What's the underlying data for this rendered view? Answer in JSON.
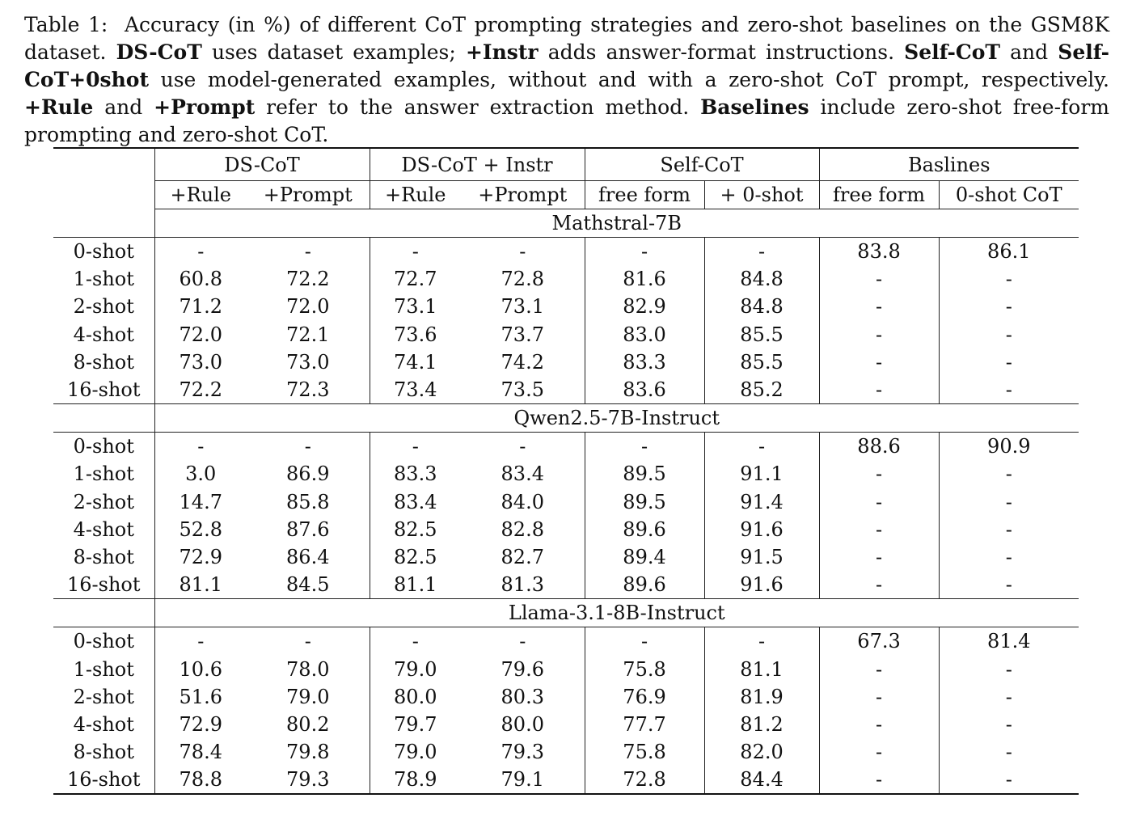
{
  "caption": {
    "label": "Table 1:",
    "p1": "Accuracy (in %) of different CoT prompting strategies and zero-shot baselines on the GSM8K dataset.",
    "t_dscot": "DS-CoT",
    "p2": "uses dataset examples;",
    "t_instr": "+Instr",
    "p3": "adds answer-format instructions.",
    "t_selfcot": "Self-CoT",
    "p4": "and",
    "t_selfcot0": "Self-CoT+0shot",
    "p5": "use model-generated examples, without and with a zero-shot CoT prompt, respectively.",
    "t_rule": "+Rule",
    "p6": "and",
    "t_prompt": "+Prompt",
    "p7": "refer to the answer extraction method.",
    "t_baselines": "Baselines",
    "p8": "include zero-shot free-form prompting and zero-shot CoT."
  },
  "header": {
    "groups": [
      "DS-CoT",
      "DS-CoT + Instr",
      "Self-CoT",
      "Baslines"
    ],
    "subcols": [
      "+Rule",
      "+Prompt",
      "+Rule",
      "+Prompt",
      "free form",
      "+ 0-shot",
      "free form",
      "0-shot CoT"
    ]
  },
  "sections": [
    {
      "model": "Mathstral-7B",
      "rows": [
        {
          "label": "0-shot",
          "cells": [
            "-",
            "-",
            "-",
            "-",
            "-",
            "-",
            "83.8",
            "86.1"
          ]
        },
        {
          "label": "1-shot",
          "cells": [
            "60.8",
            "72.2",
            "72.7",
            "72.8",
            "81.6",
            "84.8",
            "-",
            "-"
          ]
        },
        {
          "label": "2-shot",
          "cells": [
            "71.2",
            "72.0",
            "73.1",
            "73.1",
            "82.9",
            "84.8",
            "-",
            "-"
          ]
        },
        {
          "label": "4-shot",
          "cells": [
            "72.0",
            "72.1",
            "73.6",
            "73.7",
            "83.0",
            "85.5",
            "-",
            "-"
          ]
        },
        {
          "label": "8-shot",
          "cells": [
            "73.0",
            "73.0",
            "74.1",
            "74.2",
            "83.3",
            "85.5",
            "-",
            "-"
          ]
        },
        {
          "label": "16-shot",
          "cells": [
            "72.2",
            "72.3",
            "73.4",
            "73.5",
            "83.6",
            "85.2",
            "-",
            "-"
          ]
        }
      ]
    },
    {
      "model": "Qwen2.5-7B-Instruct",
      "rows": [
        {
          "label": "0-shot",
          "cells": [
            "-",
            "-",
            "-",
            "-",
            "-",
            "-",
            "88.6",
            "90.9"
          ]
        },
        {
          "label": "1-shot",
          "cells": [
            "3.0",
            "86.9",
            "83.3",
            "83.4",
            "89.5",
            "91.1",
            "-",
            "-"
          ]
        },
        {
          "label": "2-shot",
          "cells": [
            "14.7",
            "85.8",
            "83.4",
            "84.0",
            "89.5",
            "91.4",
            "-",
            "-"
          ]
        },
        {
          "label": "4-shot",
          "cells": [
            "52.8",
            "87.6",
            "82.5",
            "82.8",
            "89.6",
            "91.6",
            "-",
            "-"
          ]
        },
        {
          "label": "8-shot",
          "cells": [
            "72.9",
            "86.4",
            "82.5",
            "82.7",
            "89.4",
            "91.5",
            "-",
            "-"
          ]
        },
        {
          "label": "16-shot",
          "cells": [
            "81.1",
            "84.5",
            "81.1",
            "81.3",
            "89.6",
            "91.6",
            "-",
            "-"
          ]
        }
      ]
    },
    {
      "model": "Llama-3.1-8B-Instruct",
      "rows": [
        {
          "label": "0-shot",
          "cells": [
            "-",
            "-",
            "-",
            "-",
            "-",
            "-",
            "67.3",
            "81.4"
          ]
        },
        {
          "label": "1-shot",
          "cells": [
            "10.6",
            "78.0",
            "79.0",
            "79.6",
            "75.8",
            "81.1",
            "-",
            "-"
          ]
        },
        {
          "label": "2-shot",
          "cells": [
            "51.6",
            "79.0",
            "80.0",
            "80.3",
            "76.9",
            "81.9",
            "-",
            "-"
          ]
        },
        {
          "label": "4-shot",
          "cells": [
            "72.9",
            "80.2",
            "79.7",
            "80.0",
            "77.7",
            "81.2",
            "-",
            "-"
          ]
        },
        {
          "label": "8-shot",
          "cells": [
            "78.4",
            "79.8",
            "79.0",
            "79.3",
            "75.8",
            "82.0",
            "-",
            "-"
          ]
        },
        {
          "label": "16-shot",
          "cells": [
            "78.8",
            "79.3",
            "78.9",
            "79.1",
            "72.8",
            "84.4",
            "-",
            "-"
          ]
        }
      ]
    }
  ]
}
